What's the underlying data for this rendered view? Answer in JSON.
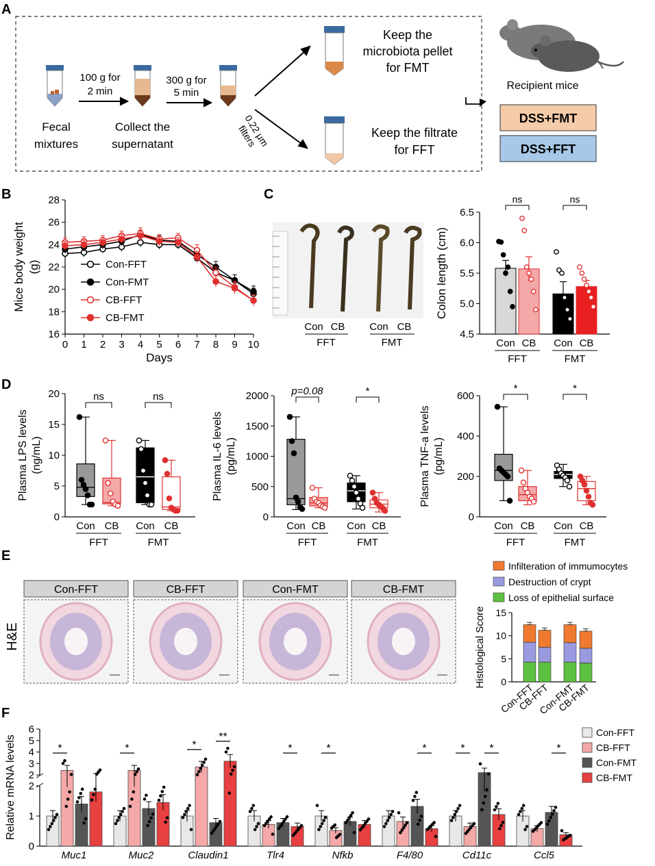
{
  "panel_labels": {
    "a": "A",
    "b": "B",
    "c": "C",
    "d": "D",
    "e": "E",
    "f": "F"
  },
  "panel_a": {
    "fecal": [
      "Fecal",
      "mixtures"
    ],
    "step1": [
      "100 g for",
      "2 min"
    ],
    "collect": [
      "Collect the",
      "supernatant"
    ],
    "step2": [
      "300 g for",
      "5 min"
    ],
    "filters": [
      "0.22 μm",
      "filters"
    ],
    "pellet": [
      "Keep the",
      "microbiota pellet",
      "for FMT"
    ],
    "filtrate": [
      "Keep the filtrate",
      "for FFT"
    ],
    "recipient": "Recipient  mice",
    "box_fmt": "DSS+FMT",
    "box_fft": "DSS+FFT",
    "colors": {
      "fmt": "#f5ccaa",
      "fft": "#a8c8e8",
      "pellet": "#d98a4a",
      "brown": "#6b3a1a"
    }
  },
  "chart_data": [
    {
      "id": "B",
      "type": "line",
      "xlabel": "Days",
      "ylabel": "Mice body weight (g)",
      "ylabel_lines": [
        "Mice body weight",
        "(g)"
      ],
      "xlim": [
        0,
        10
      ],
      "ylim": [
        16,
        28
      ],
      "xticks": [
        "0",
        "1",
        "2",
        "3",
        "4",
        "5",
        "6",
        "7",
        "8",
        "9",
        "10"
      ],
      "yticks": [
        "16",
        "18",
        "20",
        "22",
        "24",
        "26",
        "28"
      ],
      "x": [
        0,
        1,
        2,
        3,
        4,
        5,
        6,
        7,
        8,
        9,
        10
      ],
      "series": [
        {
          "name": "Con-FFT",
          "color": "#000000",
          "fill": "#ffffff",
          "values": [
            23.2,
            23.3,
            23.6,
            23.8,
            24.2,
            24.0,
            24.0,
            22.8,
            21.5,
            20.8,
            19.6
          ],
          "err": [
            0.4,
            0.4,
            0.3,
            0.4,
            0.4,
            0.4,
            0.4,
            0.4,
            0.5,
            0.5,
            0.5
          ]
        },
        {
          "name": "Con-FMT",
          "color": "#000000",
          "fill": "#000000",
          "values": [
            23.6,
            23.8,
            24.0,
            24.3,
            24.9,
            24.4,
            24.3,
            23.1,
            22.0,
            20.8,
            19.8
          ],
          "err": [
            0.4,
            0.4,
            0.4,
            0.4,
            0.4,
            0.4,
            0.4,
            0.4,
            0.5,
            0.5,
            0.5
          ]
        },
        {
          "name": "CB-FFT",
          "color": "#e03030",
          "fill": "#ffffff",
          "values": [
            24.2,
            24.3,
            24.4,
            24.8,
            25.0,
            24.5,
            24.6,
            23.5,
            21.5,
            20.2,
            19.0
          ],
          "err": [
            0.4,
            0.4,
            0.4,
            0.4,
            0.5,
            0.4,
            0.4,
            0.5,
            0.5,
            0.5,
            0.5
          ]
        },
        {
          "name": "CB-FMT",
          "color": "#e03030",
          "fill": "#e03030",
          "values": [
            23.9,
            24.0,
            24.2,
            24.5,
            24.8,
            24.3,
            24.2,
            22.9,
            20.7,
            20.1,
            19.0
          ],
          "err": [
            0.4,
            0.4,
            0.4,
            0.4,
            0.5,
            0.4,
            0.4,
            0.5,
            0.5,
            0.5,
            0.5
          ]
        }
      ]
    },
    {
      "id": "C",
      "type": "bar",
      "ylabel": "Colon length (cm)",
      "ylim": [
        4.5,
        6.5
      ],
      "yticks": [
        "4.5",
        "5.0",
        "5.5",
        "6.0",
        "6.5"
      ],
      "categories": [
        "Con",
        "CB",
        "Con",
        "CB"
      ],
      "groups": [
        "FFT",
        "FMT"
      ],
      "values": [
        5.58,
        5.57,
        5.16,
        5.28
      ],
      "err": [
        0.13,
        0.2,
        0.2,
        0.1
      ],
      "points": [
        [
          6.02,
          6.01,
          5.8,
          5.5,
          5.6,
          5.2,
          4.95
        ],
        [
          6.4,
          6.2,
          5.6,
          5.5,
          5.4,
          5.2,
          4.9
        ],
        [
          5.85,
          5.55,
          5.5,
          5.1,
          4.9,
          4.75
        ],
        [
          5.6,
          5.5,
          5.4,
          5.3,
          5.2,
          5.1,
          4.95
        ]
      ],
      "sig": [
        "ns",
        "ns"
      ]
    },
    {
      "id": "D-LPS",
      "type": "box",
      "ylabel": "Plasma LPS levels (ng/mL)",
      "ylabel_lines": [
        "Plasma LPS levels",
        "(ng/mL)"
      ],
      "ylim": [
        0,
        20
      ],
      "yticks": [
        "0",
        "5",
        "10",
        "15",
        "20"
      ],
      "categories": [
        "Con",
        "CB",
        "Con",
        "CB"
      ],
      "groups": [
        "FFT",
        "FMT"
      ],
      "boxes": [
        {
          "min": 2.0,
          "q1": 3.3,
          "med": 4.8,
          "q3": 8.6,
          "max": 16.2
        },
        {
          "min": 1.8,
          "q1": 2.1,
          "med": 2.3,
          "q3": 6.3,
          "max": 12.4
        },
        {
          "min": 2.0,
          "q1": 2.3,
          "med": 6.5,
          "q3": 11.2,
          "max": 12.4
        },
        {
          "min": 1.0,
          "q1": 1.2,
          "med": 1.6,
          "q3": 6.5,
          "max": 9.2
        }
      ],
      "points": [
        [
          16.2,
          6.0,
          5.2,
          4.5,
          3.5,
          2.0,
          2.0
        ],
        [
          12.4,
          5.5,
          3.8,
          2.5,
          2.0,
          1.8
        ],
        [
          12.4,
          11.0,
          7.5,
          5.5,
          3.5,
          2.0,
          2.0
        ],
        [
          9.2,
          7.0,
          3.0,
          1.5,
          1.2,
          1.0,
          1.0
        ]
      ],
      "sig": [
        "ns",
        "ns"
      ]
    },
    {
      "id": "D-IL6",
      "type": "box",
      "ylabel": "Plasma IL-6 levels (pg/mL)",
      "ylabel_lines": [
        "Plasma IL-6 levels",
        "(pg/mL)"
      ],
      "ylim": [
        0,
        2000
      ],
      "yticks": [
        "0",
        "500",
        "1000",
        "1500",
        "2000"
      ],
      "categories": [
        "Con",
        "CB",
        "Con",
        "CB"
      ],
      "groups": [
        "FFT",
        "FMT"
      ],
      "boxes": [
        {
          "min": 120,
          "q1": 200,
          "med": 300,
          "q3": 1280,
          "max": 1650
        },
        {
          "min": 150,
          "q1": 180,
          "med": 230,
          "q3": 320,
          "max": 480
        },
        {
          "min": 130,
          "q1": 250,
          "med": 430,
          "q3": 560,
          "max": 680
        },
        {
          "min": 80,
          "q1": 150,
          "med": 210,
          "q3": 280,
          "max": 400
        }
      ],
      "points": [
        [
          1650,
          1250,
          1050,
          320,
          250,
          160,
          130
        ],
        [
          480,
          300,
          250,
          230,
          190,
          170,
          150
        ],
        [
          680,
          600,
          500,
          400,
          300,
          220,
          150
        ],
        [
          400,
          300,
          230,
          200,
          170,
          140,
          100
        ]
      ],
      "sig": [
        "p=0.08",
        "*"
      ]
    },
    {
      "id": "D-TNF",
      "type": "box",
      "ylabel": "Plasma TNF-a levels (pg/mL)",
      "ylabel_lines": [
        "Plasma TNF-a levels",
        "(pg/mL)"
      ],
      "ylim": [
        0,
        600
      ],
      "yticks": [
        "0",
        "200",
        "400",
        "600"
      ],
      "categories": [
        "Con",
        "CB",
        "Con",
        "CB"
      ],
      "groups": [
        "FFT",
        "FMT"
      ],
      "boxes": [
        {
          "min": 80,
          "q1": 180,
          "med": 230,
          "q3": 310,
          "max": 545
        },
        {
          "min": 60,
          "q1": 80,
          "med": 110,
          "q3": 150,
          "max": 230
        },
        {
          "min": 150,
          "q1": 190,
          "med": 210,
          "q3": 225,
          "max": 260
        },
        {
          "min": 60,
          "q1": 80,
          "med": 140,
          "q3": 175,
          "max": 200
        }
      ],
      "points": [
        [
          545,
          240,
          230,
          220,
          210,
          200,
          80
        ],
        [
          230,
          170,
          140,
          120,
          100,
          90,
          75
        ],
        [
          255,
          235,
          215,
          205,
          195,
          180,
          150
        ],
        [
          200,
          180,
          160,
          130,
          100,
          70,
          60
        ]
      ],
      "sig": [
        "*",
        "*"
      ]
    },
    {
      "id": "E",
      "type": "stacked-bar",
      "ylabel": "Histological Score",
      "ylim": [
        0,
        15
      ],
      "yticks": [
        "0",
        "5",
        "10",
        "15"
      ],
      "categories": [
        "Con-FFT",
        "CB-FFT",
        "Con-FMT",
        "CB-FMT"
      ],
      "series": [
        {
          "name": "Loss of epithelial surface",
          "color": "#5cc040",
          "values": [
            4.3,
            4.3,
            4.3,
            4.1
          ]
        },
        {
          "name": "Destruction of crypt",
          "color": "#9a9ae0",
          "values": [
            4.3,
            3.2,
            4.2,
            3.2
          ]
        },
        {
          "name": "Infilteration of immumocytes",
          "color": "#f07a30",
          "values": [
            3.8,
            3.7,
            3.9,
            3.7
          ]
        }
      ],
      "err": [
        0.5,
        0.5,
        0.5,
        0.5
      ]
    },
    {
      "id": "F",
      "type": "bar",
      "ylabel": "Relative mRNA levels",
      "yticks_lower": [
        "0",
        "1",
        "2"
      ],
      "yticks_upper": [
        "2",
        "3",
        "4",
        "5",
        "6"
      ],
      "categories": [
        "Muc1",
        "Muc2",
        "Claudin1",
        "Tlr4",
        "Nfkb",
        "F4/80",
        "Cd11c",
        "Ccl5"
      ],
      "series": [
        {
          "name": "Con-FFT",
          "color": "#e8e8e8"
        },
        {
          "name": "CB-FFT",
          "color": "#f4a8a8"
        },
        {
          "name": "Con-FMT",
          "color": "#555555"
        },
        {
          "name": "CB-FMT",
          "color": "#e84040"
        }
      ],
      "values": [
        [
          1.0,
          2.4,
          1.4,
          1.8
        ],
        [
          1.0,
          2.4,
          1.25,
          1.45
        ],
        [
          1.0,
          2.7,
          0.78,
          3.2
        ],
        [
          1.0,
          0.72,
          0.78,
          0.65
        ],
        [
          1.0,
          0.52,
          0.82,
          0.72
        ],
        [
          1.0,
          0.82,
          1.32,
          0.58
        ],
        [
          1.0,
          0.65,
          2.2,
          1.05
        ],
        [
          1.0,
          0.58,
          1.12,
          0.38
        ]
      ],
      "sig": [
        [
          "*",
          0,
          1
        ],
        [
          "*",
          0,
          1
        ],
        [
          "*",
          0,
          1
        ],
        [
          "**",
          2,
          3
        ],
        [
          "*",
          2,
          3
        ],
        [
          "*",
          0,
          1
        ],
        [
          "*",
          2,
          3
        ],
        [
          "*",
          0,
          1
        ],
        [
          "*",
          2,
          3
        ],
        [
          "*",
          2,
          3
        ]
      ]
    }
  ],
  "panel_e": {
    "image_labels": [
      "Con-FFT",
      "CB-FFT",
      "Con-FMT",
      "CB-FMT"
    ],
    "stain": "H&E"
  }
}
